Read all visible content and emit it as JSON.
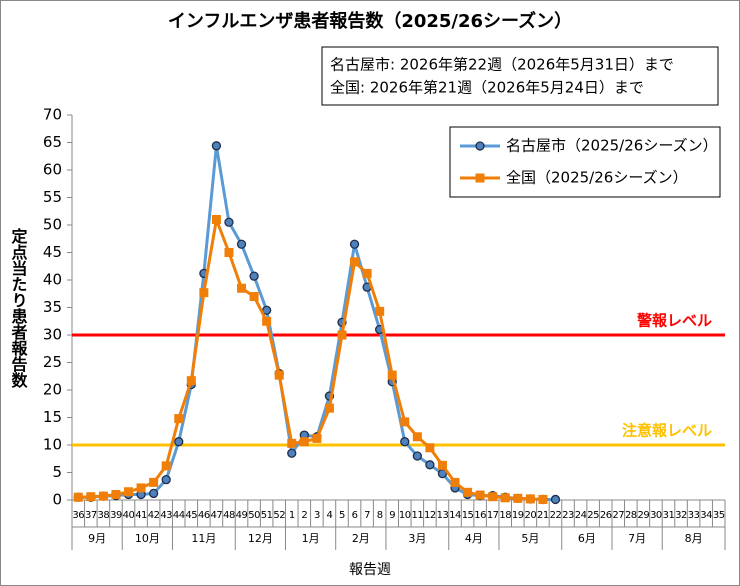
{
  "chart_data": {
    "type": "line",
    "title": "インフルエンザ患者報告数（2025/26シーズン）",
    "annotation": [
      "名古屋市: 2026年第22週（2026年5月31日）まで",
      "全国: 2026年第21週（2026年5月24日）まで"
    ],
    "xlabel": "報告週",
    "ylabel": "定点当たり患者報告数",
    "categories": [
      "36",
      "37",
      "38",
      "39",
      "40",
      "41",
      "42",
      "43",
      "44",
      "45",
      "46",
      "47",
      "48",
      "49",
      "50",
      "51",
      "52",
      "1",
      "2",
      "3",
      "4",
      "5",
      "6",
      "7",
      "8",
      "9",
      "10",
      "11",
      "12",
      "13",
      "14",
      "15",
      "16",
      "17",
      "18",
      "19",
      "20",
      "21",
      "22",
      "23",
      "24",
      "25",
      "26",
      "27",
      "28",
      "29",
      "30",
      "31",
      "32",
      "33",
      "34",
      "35"
    ],
    "month_groups": [
      {
        "label": "9月",
        "weeks": 4
      },
      {
        "label": "10月",
        "weeks": 4
      },
      {
        "label": "11月",
        "weeks": 5
      },
      {
        "label": "12月",
        "weeks": 4
      },
      {
        "label": "1月",
        "weeks": 4
      },
      {
        "label": "2月",
        "weeks": 4
      },
      {
        "label": "3月",
        "weeks": 5
      },
      {
        "label": "4月",
        "weeks": 4
      },
      {
        "label": "5月",
        "weeks": 5
      },
      {
        "label": "6月",
        "weeks": 4
      },
      {
        "label": "7月",
        "weeks": 4
      },
      {
        "label": "8月",
        "weeks": 5
      }
    ],
    "series": [
      {
        "name": "名古屋市（2025/26シーズン）",
        "color": "#5b9bd5",
        "marker": "circle",
        "marker_color": "#4f81bd",
        "values": [
          0.5,
          0.5,
          0.7,
          0.8,
          1.0,
          1.0,
          1.2,
          3.7,
          10.6,
          21.0,
          41.2,
          64.4,
          50.5,
          46.5,
          40.7,
          34.5,
          23.0,
          8.5,
          11.8,
          11.5,
          18.9,
          32.3,
          46.5,
          38.7,
          31.0,
          21.5,
          10.6,
          8.0,
          6.4,
          4.8,
          2.2,
          1.0,
          0.8,
          0.8,
          0.5,
          0.3,
          0.2,
          0.1,
          0.1,
          null,
          null,
          null,
          null,
          null,
          null,
          null,
          null,
          null,
          null,
          null,
          null,
          null
        ]
      },
      {
        "name": "全国（2025/26シーズン）",
        "color": "#f07f09",
        "marker": "square",
        "marker_color": "#f07f09",
        "values": [
          0.5,
          0.6,
          0.7,
          1.0,
          1.5,
          2.2,
          3.2,
          6.2,
          14.8,
          21.7,
          37.7,
          51.0,
          45.0,
          38.5,
          37.0,
          32.5,
          22.7,
          10.3,
          10.6,
          11.2,
          16.7,
          30.0,
          43.3,
          41.2,
          34.3,
          22.7,
          14.2,
          11.5,
          9.5,
          6.3,
          3.2,
          1.4,
          0.9,
          0.6,
          0.4,
          0.3,
          0.2,
          0.1,
          null,
          null,
          null,
          null,
          null,
          null,
          null,
          null,
          null,
          null,
          null,
          null,
          null,
          null
        ]
      }
    ],
    "reference_lines": [
      {
        "value": 30,
        "label": "警報レベル",
        "color": "#ff0000"
      },
      {
        "value": 10,
        "label": "注意報レベル",
        "color": "#ffc000"
      }
    ],
    "ylim": [
      0,
      70
    ],
    "yticks": [
      0,
      5,
      10,
      15,
      20,
      25,
      30,
      35,
      40,
      45,
      50,
      55,
      60,
      65,
      70
    ],
    "grid": false,
    "legend": "upper right"
  }
}
